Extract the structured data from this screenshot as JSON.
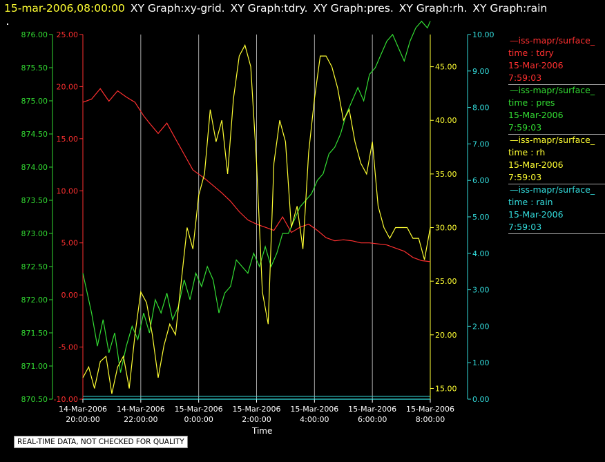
{
  "header": {
    "timestamp": "15-mar-2006,08:00:00",
    "graphs": [
      "XY Graph:xy-grid.",
      "XY Graph:tdry.",
      "XY Graph:pres.",
      "XY Graph:rh.",
      "XY Graph:rain"
    ]
  },
  "legend": [
    {
      "title": "iss-mapr/surface_",
      "field": "time : tdry",
      "date": "15-Mar-2006",
      "time": "7:59:03",
      "color": "#ff3030"
    },
    {
      "title": "iss-mapr/surface_",
      "field": "time : pres",
      "date": "15-Mar-2006",
      "time": "7:59:03",
      "color": "#33dd33"
    },
    {
      "title": "iss-mapr/surface_",
      "field": "time : rh",
      "date": "15-Mar-2006",
      "time": "7:59:03",
      "color": "#ffff33"
    },
    {
      "title": "iss-mapr/surface_",
      "field": "time : rain",
      "date": "15-Mar-2006",
      "time": "7:59:03",
      "color": "#33dddd"
    }
  ],
  "quality_note": "REAL-TIME DATA, NOT CHECKED FOR QUALITY",
  "chart_data": {
    "type": "line",
    "xlabel": "Time",
    "x_ticks": [
      {
        "date": "14-Mar-2006",
        "time": "20:00:00",
        "h": 0
      },
      {
        "date": "14-Mar-2006",
        "time": "22:00:00",
        "h": 2
      },
      {
        "date": "15-Mar-2006",
        "time": "0:00:00",
        "h": 4
      },
      {
        "date": "15-Mar-2006",
        "time": "2:00:00",
        "h": 6
      },
      {
        "date": "15-Mar-2006",
        "time": "4:00:00",
        "h": 8
      },
      {
        "date": "15-Mar-2006",
        "time": "6:00:00",
        "h": 10
      },
      {
        "date": "15-Mar-2006",
        "time": "8:00:00",
        "h": 12
      }
    ],
    "xlim": [
      0,
      12
    ],
    "grid": "vertical",
    "axes": {
      "pres": {
        "color": "#33dd33",
        "ylim": [
          870.5,
          876.0
        ],
        "ticks": [
          "870.50",
          "871.00",
          "871.50",
          "872.00",
          "872.50",
          "873.00",
          "873.50",
          "874.00",
          "874.50",
          "875.00",
          "875.50",
          "876.00"
        ]
      },
      "tdry": {
        "color": "#ff3030",
        "ylim": [
          -10.0,
          25.0
        ],
        "ticks": [
          "-10.00",
          "-5.00",
          "0.00",
          "5.00",
          "10.00",
          "15.00",
          "20.00",
          "25.00"
        ]
      },
      "rh": {
        "color": "#ffff33",
        "ylim": [
          14.0,
          48.0
        ],
        "ticks": [
          "15.00",
          "20.00",
          "25.00",
          "30.00",
          "35.00",
          "40.00",
          "45.00"
        ]
      },
      "rain": {
        "color": "#33dddd",
        "ylim": [
          0.0,
          10.0
        ],
        "ticks": [
          "0.00",
          "1.00",
          "2.00",
          "3.00",
          "4.00",
          "5.00",
          "6.00",
          "7.00",
          "8.00",
          "9.00",
          "10.00"
        ]
      }
    },
    "series": [
      {
        "name": "time : tdry",
        "axis": "tdry",
        "color": "#ff3030",
        "x": [
          0,
          0.3,
          0.6,
          0.9,
          1.2,
          1.5,
          1.8,
          2.1,
          2.3,
          2.6,
          2.9,
          3.2,
          3.5,
          3.8,
          4.2,
          4.5,
          4.8,
          5.1,
          5.4,
          5.7,
          6.0,
          6.3,
          6.6,
          6.9,
          7.2,
          7.5,
          7.8,
          8.1,
          8.4,
          8.7,
          9.0,
          9.3,
          9.6,
          9.9,
          10.2,
          10.5,
          10.8,
          11.1,
          11.4,
          11.7,
          12.0
        ],
        "y": [
          18.5,
          18.8,
          19.8,
          18.6,
          19.6,
          19.0,
          18.5,
          17.2,
          16.5,
          15.5,
          16.5,
          15.0,
          13.5,
          12.0,
          11.2,
          10.5,
          9.8,
          9.0,
          8.0,
          7.2,
          6.8,
          6.5,
          6.2,
          7.5,
          6.0,
          6.5,
          6.8,
          6.2,
          5.5,
          5.2,
          5.3,
          5.2,
          5.0,
          5.0,
          4.9,
          4.8,
          4.5,
          4.2,
          3.6,
          3.3,
          3.2
        ]
      },
      {
        "name": "time : pres",
        "axis": "pres",
        "color": "#33dd33",
        "x": [
          0,
          0.1,
          0.3,
          0.5,
          0.7,
          0.9,
          1.1,
          1.3,
          1.5,
          1.7,
          1.9,
          2.1,
          2.3,
          2.5,
          2.7,
          2.9,
          3.1,
          3.3,
          3.5,
          3.7,
          3.9,
          4.1,
          4.3,
          4.5,
          4.7,
          4.9,
          5.1,
          5.3,
          5.5,
          5.7,
          5.9,
          6.1,
          6.3,
          6.5,
          6.7,
          6.9,
          7.1,
          7.3,
          7.5,
          7.7,
          7.9,
          8.1,
          8.3,
          8.5,
          8.7,
          8.9,
          9.1,
          9.3,
          9.5,
          9.7,
          9.9,
          10.1,
          10.3,
          10.5,
          10.7,
          10.9,
          11.1,
          11.3,
          11.5,
          11.7,
          11.9,
          12.0
        ],
        "y": [
          872.4,
          872.2,
          871.8,
          871.3,
          871.7,
          871.2,
          871.5,
          870.9,
          871.3,
          871.6,
          871.4,
          871.8,
          871.5,
          872.0,
          871.8,
          872.1,
          871.7,
          871.9,
          872.3,
          872.0,
          872.4,
          872.2,
          872.5,
          872.3,
          871.8,
          872.1,
          872.2,
          872.6,
          872.5,
          872.4,
          872.7,
          872.5,
          872.8,
          872.5,
          872.7,
          873.0,
          873.0,
          873.2,
          873.4,
          873.5,
          873.6,
          873.8,
          873.9,
          874.2,
          874.3,
          874.5,
          874.8,
          875.0,
          875.2,
          875.0,
          875.4,
          875.5,
          875.7,
          875.9,
          876.0,
          875.8,
          875.6,
          875.9,
          876.1,
          876.2,
          876.1,
          876.2
        ]
      },
      {
        "name": "time : rh",
        "axis": "rh",
        "color": "#ffff33",
        "x": [
          0,
          0.2,
          0.4,
          0.6,
          0.8,
          1.0,
          1.2,
          1.4,
          1.6,
          1.8,
          2.0,
          2.2,
          2.4,
          2.6,
          2.8,
          3.0,
          3.2,
          3.4,
          3.6,
          3.8,
          4.0,
          4.2,
          4.4,
          4.6,
          4.8,
          5.0,
          5.2,
          5.4,
          5.6,
          5.8,
          6.0,
          6.2,
          6.4,
          6.6,
          6.8,
          7.0,
          7.2,
          7.4,
          7.6,
          7.8,
          8.0,
          8.2,
          8.4,
          8.6,
          8.8,
          9.0,
          9.2,
          9.4,
          9.6,
          9.8,
          10.0,
          10.2,
          10.4,
          10.6,
          10.8,
          11.0,
          11.2,
          11.4,
          11.6,
          11.8,
          12.0
        ],
        "y": [
          16,
          17,
          15,
          17.5,
          18,
          14.5,
          17,
          18,
          15,
          20,
          24,
          23,
          20,
          16,
          19,
          21,
          20,
          25,
          30,
          28,
          33,
          35,
          41,
          38,
          40,
          35,
          42,
          46,
          47,
          45,
          36,
          24,
          21,
          36,
          40,
          38,
          30,
          32,
          28,
          37,
          42,
          46,
          46,
          45,
          43,
          40,
          41,
          38,
          36,
          35,
          38,
          32,
          30,
          29,
          30,
          30,
          30,
          29,
          29,
          27,
          30
        ]
      },
      {
        "name": "time : rain",
        "axis": "rain",
        "color": "#33dddd",
        "x": [
          0,
          12
        ],
        "y": [
          0,
          0
        ]
      }
    ]
  }
}
